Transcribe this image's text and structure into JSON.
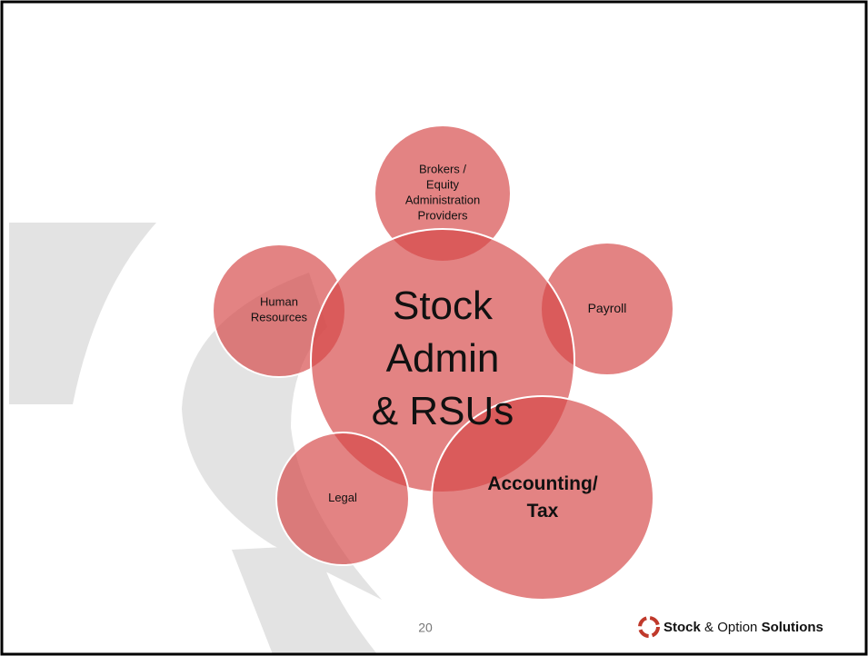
{
  "center": {
    "lines": [
      "Stock",
      "Admin",
      "& RSUs"
    ]
  },
  "nodes": [
    {
      "lines": [
        "Brokers /",
        "Equity",
        "Administration",
        "Providers"
      ]
    },
    {
      "lines": [
        "Payroll"
      ]
    },
    {
      "lines": [
        "Accounting/",
        "Tax"
      ]
    },
    {
      "lines": [
        "Legal"
      ]
    },
    {
      "lines": [
        "Human",
        "Resources"
      ]
    }
  ],
  "footer": {
    "page_number": "20",
    "logo": {
      "parts": [
        "Stock",
        " & Option ",
        "Solutions"
      ]
    }
  }
}
